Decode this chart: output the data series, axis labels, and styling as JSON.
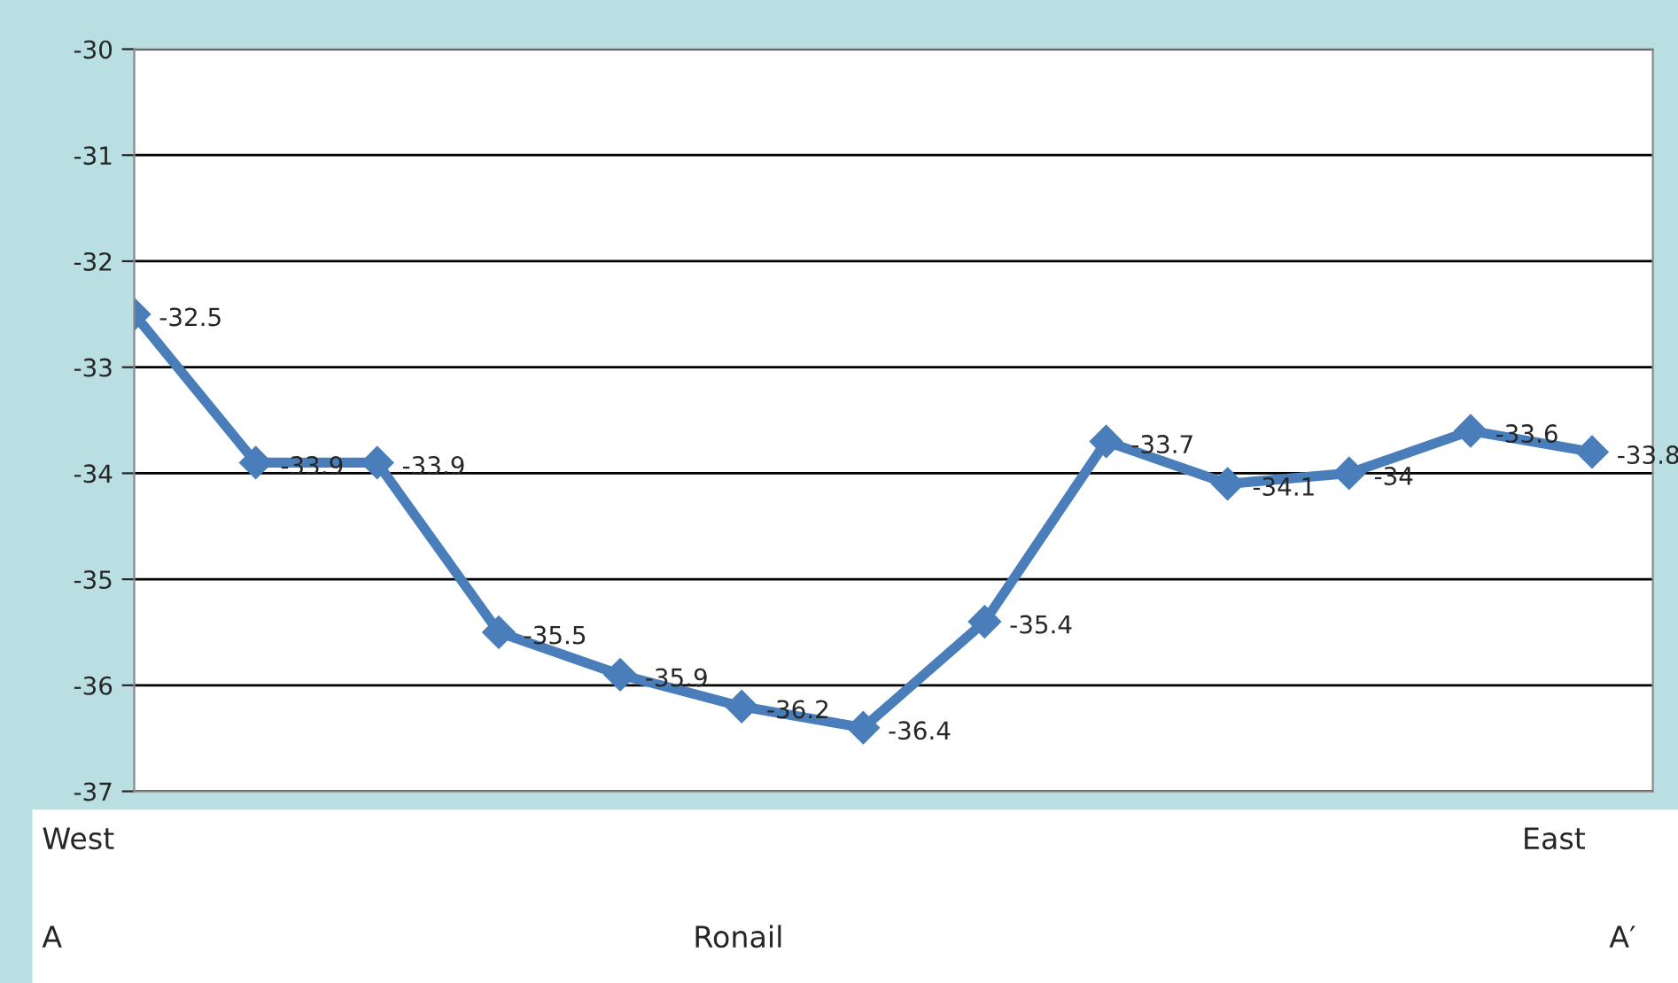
{
  "chart_data": {
    "type": "line",
    "categories": [
      null,
      null,
      null,
      null,
      null,
      null,
      null,
      null,
      null,
      null,
      null,
      null,
      null
    ],
    "series": [
      {
        "color": "#4a7ebb",
        "values": [
          -32.5,
          -33.9,
          -33.9,
          -35.5,
          -35.9,
          -36.2,
          -36.4,
          -35.4,
          -33.7,
          -34.1,
          -34,
          -33.6,
          -33.8
        ]
      }
    ],
    "ylim": [
      -37,
      -30
    ],
    "yticks": [
      -37,
      -36,
      -35,
      -34,
      -33,
      -32,
      -31,
      -30
    ],
    "grid": "y",
    "marker": "diamond",
    "line_style": "solid",
    "data_labels": true,
    "legend": false,
    "tick_labels": "y",
    "annotations": [
      "West",
      "East",
      "A",
      "Ronail",
      "A′"
    ]
  }
}
